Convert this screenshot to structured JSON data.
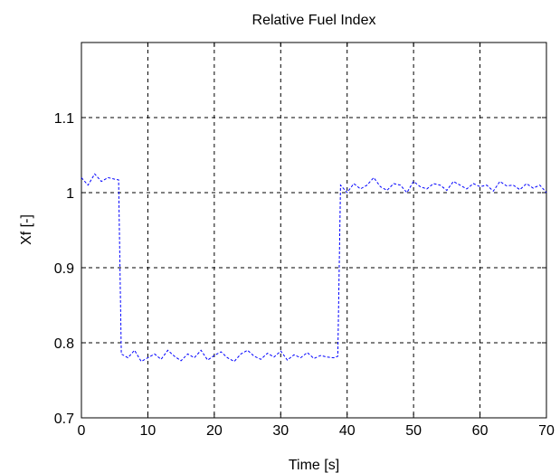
{
  "chart_data": {
    "type": "line",
    "title": "Relative Fuel Index",
    "xlabel": "Time [s]",
    "ylabel": "Xf [-]",
    "xlim": [
      0,
      70
    ],
    "ylim": [
      0.7,
      1.2
    ],
    "x_ticks": [
      0,
      10,
      20,
      30,
      40,
      50,
      60,
      70
    ],
    "x_tick_labels": [
      "0",
      "10",
      "20",
      "30",
      "40",
      "50",
      "60",
      "70"
    ],
    "y_ticks": [
      0.7,
      0.8,
      0.9,
      1.0,
      1.1
    ],
    "y_tick_labels": [
      "0.7",
      "0.8",
      "0.9",
      "1",
      "1.1"
    ],
    "grid": true,
    "grid_style": "dashed",
    "series": [
      {
        "line_style": "dashed",
        "color": "#0000ff",
        "x": [
          0,
          1,
          2,
          3,
          4,
          5,
          5.6,
          6.0,
          7,
          8,
          9,
          10,
          11,
          12,
          13,
          14,
          15,
          16,
          17,
          18,
          19,
          20,
          21,
          22,
          23,
          24,
          25,
          26,
          27,
          28,
          29,
          30,
          31,
          32,
          33,
          34,
          35,
          36,
          37,
          38,
          38.6,
          39.0,
          40,
          41,
          42,
          43,
          44,
          45,
          46,
          47,
          48,
          49,
          50,
          51,
          52,
          53,
          54,
          55,
          56,
          57,
          58,
          59,
          60,
          61,
          62,
          63,
          64,
          65,
          66,
          67,
          68,
          69,
          70
        ],
        "y": [
          1.02,
          1.01,
          1.025,
          1.015,
          1.02,
          1.018,
          1.017,
          0.785,
          0.78,
          0.79,
          0.775,
          0.78,
          0.785,
          0.778,
          0.79,
          0.782,
          0.776,
          0.785,
          0.78,
          0.79,
          0.777,
          0.783,
          0.788,
          0.78,
          0.775,
          0.785,
          0.79,
          0.782,
          0.778,
          0.786,
          0.781,
          0.789,
          0.777,
          0.784,
          0.78,
          0.787,
          0.779,
          0.783,
          0.781,
          0.78,
          0.782,
          1.01,
          1.0,
          1.012,
          1.005,
          1.01,
          1.02,
          1.008,
          1.003,
          1.012,
          1.01,
          1.0,
          1.015,
          1.008,
          1.005,
          1.012,
          1.01,
          1.003,
          1.015,
          1.01,
          1.005,
          1.012,
          1.008,
          1.01,
          1.002,
          1.015,
          1.009,
          1.01,
          1.004,
          1.012,
          1.006,
          1.01,
          1.0
        ]
      }
    ]
  }
}
